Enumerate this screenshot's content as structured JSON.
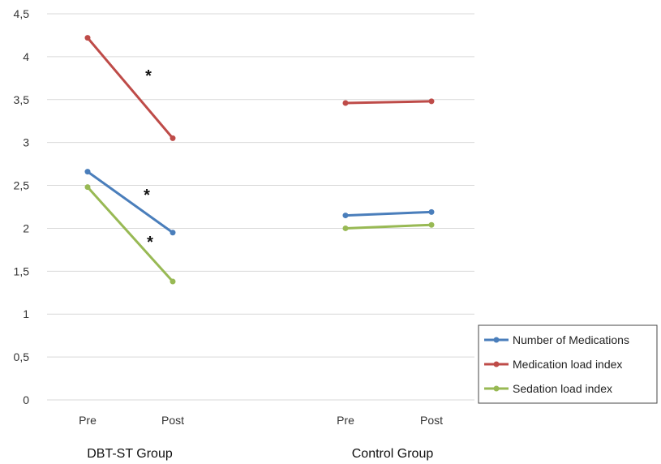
{
  "chart_data": {
    "type": "line",
    "ylim": [
      0,
      4.5
    ],
    "yticks": [
      "0",
      "0,5",
      "1",
      "1,5",
      "2",
      "2,5",
      "3",
      "3,5",
      "4",
      "4,5"
    ],
    "grid": true,
    "legend_position": "bottom-right",
    "groups": [
      {
        "name": "DBT-ST Group",
        "categories": [
          "Pre",
          "Post"
        ],
        "series": [
          {
            "name": "Number of Medications",
            "values": [
              2.66,
              1.95
            ]
          },
          {
            "name": "Medication load index",
            "values": [
              4.22,
              3.05
            ]
          },
          {
            "name": "Sedation load index",
            "values": [
              2.48,
              1.38
            ]
          }
        ],
        "annotations": [
          "*",
          "*",
          "*"
        ]
      },
      {
        "name": "Control Group",
        "categories": [
          "Pre",
          "Post"
        ],
        "series": [
          {
            "name": "Number of Medications",
            "values": [
              2.15,
              2.19
            ]
          },
          {
            "name": "Medication load index",
            "values": [
              3.46,
              3.48
            ]
          },
          {
            "name": "Sedation load index",
            "values": [
              2.0,
              2.04
            ]
          }
        ],
        "annotations": []
      }
    ],
    "legend": [
      "Number of Medications",
      "Medication load index",
      "Sedation load index"
    ],
    "colors": {
      "Number of Medications": "#4a7ebb",
      "Medication load index": "#be4b48",
      "Sedation load index": "#98b954"
    }
  }
}
